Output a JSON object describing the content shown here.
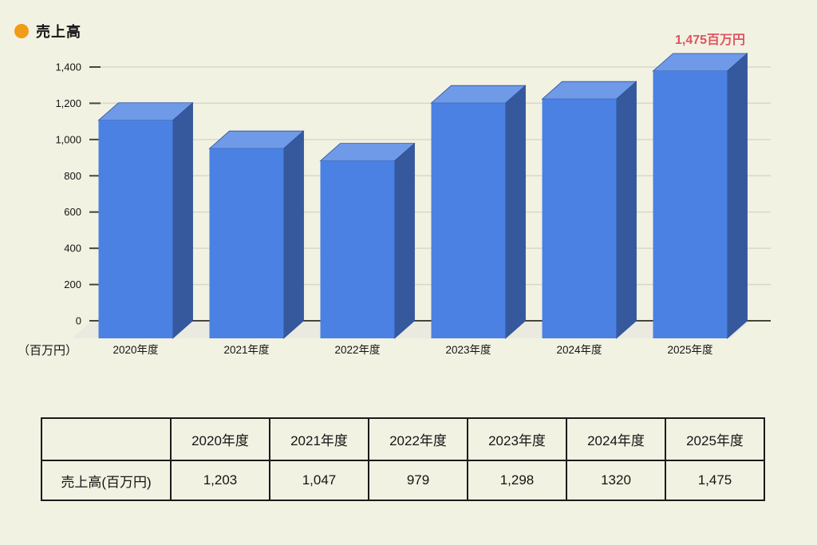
{
  "page": {
    "background": "#f2f2e3"
  },
  "legend": {
    "label": "売上高",
    "dot_color": "#f09c17"
  },
  "chart_data": {
    "type": "bar",
    "title": "売上高",
    "unit_label": "（百万円）",
    "categories": [
      "2020年度",
      "2021年度",
      "2022年度",
      "2023年度",
      "2024年度",
      "2025年度"
    ],
    "values": [
      1203,
      1047,
      979,
      1298,
      1320,
      1475
    ],
    "ylim": [
      0,
      1400
    ],
    "ytick_step": 200,
    "grid": true,
    "style": "3d-bars",
    "legend_position": "top-left",
    "annotation": {
      "text": "1,475百万円",
      "bar_index": 5,
      "color": "#e2525f"
    },
    "colors": {
      "bar_front": "#4a81e3",
      "bar_top": "#6f9ae8",
      "bar_side": "#36599e",
      "bar_edge": "#2d4f97",
      "floor": "#eaeae1",
      "gridline": "#d8d8c9",
      "axis": "#45453c",
      "text": "#141414"
    }
  },
  "table": {
    "row_header": "売上高(百万円)",
    "columns": [
      "2020年度",
      "2021年度",
      "2022年度",
      "2023年度",
      "2024年度",
      "2025年度"
    ],
    "values": [
      "1,203",
      "1,047",
      "979",
      "1,298",
      "1320",
      "1,475"
    ]
  }
}
